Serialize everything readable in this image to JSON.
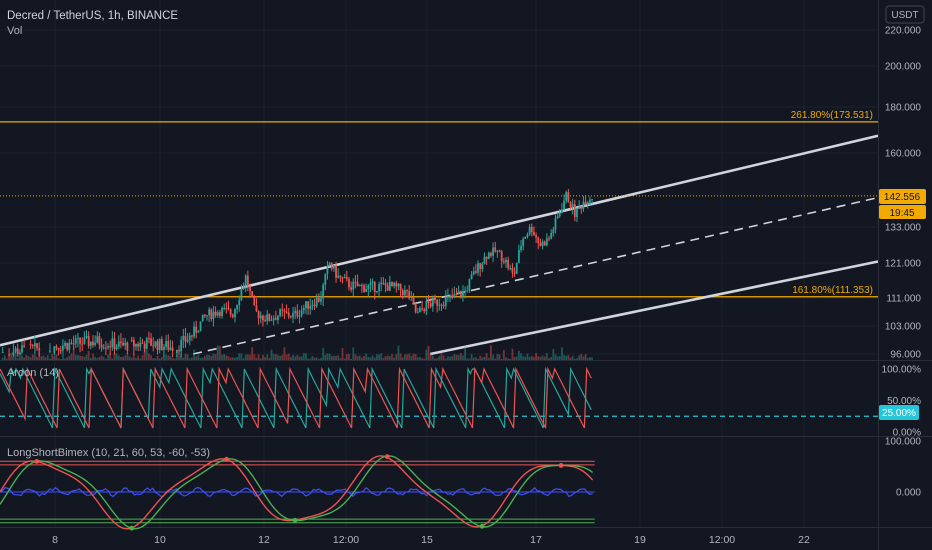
{
  "header": {
    "title": "Decred / TetherUS, 1h, BINANCE",
    "volume_label": "Vol"
  },
  "currency_label": "USDT",
  "price_tag": {
    "value": "142.556",
    "countdown": "19:45"
  },
  "colors": {
    "background": "#131722",
    "up": "#26a69a",
    "down": "#ef5350",
    "channel": "#d1d4dc",
    "fib": "#f2a900",
    "aroon_up": "#26a69a",
    "aroon_down": "#ef5350",
    "aroon_level": "#26c6da",
    "osc_red": "#ef5350",
    "osc_green": "#4caf50",
    "osc_blue": "#3f51f5",
    "text": "#b2b5be"
  },
  "chart_data": [
    {
      "type": "candlestick",
      "title": "Decred / TetherUS, 1h, BINANCE",
      "ylabel": "USDT",
      "y_ticks": [
        "220.000",
        "200.000",
        "180.000",
        "160.000",
        "133.000",
        "121.000",
        "111.000",
        "103.000",
        "96.000"
      ],
      "x_ticks": [
        "8",
        "10",
        "12",
        "12:00",
        "15",
        "17",
        "19",
        "12:00",
        "22"
      ],
      "fib_levels": [
        {
          "label": "261.80%(173.531)",
          "value": 173.531
        },
        {
          "label": "161.80%(111.353)",
          "value": 111.353
        }
      ],
      "last_price": 142.556,
      "channel": {
        "upper": [
          {
            "x": 0,
            "y": 98.2
          },
          {
            "x": 100,
            "y": 167.5
          }
        ],
        "middle": [
          {
            "x": 22,
            "y": 96.0
          },
          {
            "x": 100,
            "y": 142.0
          }
        ],
        "lower": [
          {
            "x": 49,
            "y": 96.0
          },
          {
            "x": 100,
            "y": 121.5
          }
        ]
      },
      "price_path": [
        [
          0,
          96.5
        ],
        [
          4,
          97.2
        ],
        [
          8,
          98.5
        ],
        [
          11,
          99.2
        ],
        [
          14,
          98.0
        ],
        [
          17,
          98.8
        ],
        [
          20,
          97.5
        ],
        [
          22,
          101.0
        ],
        [
          23.5,
          106.0
        ],
        [
          25,
          107.5
        ],
        [
          26.5,
          106.5
        ],
        [
          28,
          117.0
        ],
        [
          29,
          107.0
        ],
        [
          30.5,
          105.0
        ],
        [
          32,
          106.5
        ],
        [
          33.5,
          106.0
        ],
        [
          35,
          109.0
        ],
        [
          36.5,
          111.0
        ],
        [
          37.5,
          121.0
        ],
        [
          38.5,
          117.0
        ],
        [
          40,
          114.5
        ],
        [
          42,
          114.0
        ],
        [
          44,
          114.5
        ],
        [
          45.5,
          113.5
        ],
        [
          46.5,
          112.0
        ],
        [
          47.5,
          106.0
        ],
        [
          48.5,
          109.0
        ],
        [
          50,
          110.0
        ],
        [
          51.5,
          111.0
        ],
        [
          53,
          113.0
        ],
        [
          54,
          118.0
        ],
        [
          55.5,
          124.0
        ],
        [
          56.5,
          125.0
        ],
        [
          57.5,
          122.0
        ],
        [
          58.5,
          117.0
        ],
        [
          59.5,
          129.0
        ],
        [
          60.5,
          133.0
        ],
        [
          61.5,
          127.0
        ],
        [
          62.5,
          129.0
        ],
        [
          63.5,
          136.0
        ],
        [
          64.5,
          143.0
        ],
        [
          65.5,
          137.0
        ],
        [
          66.5,
          141.0
        ],
        [
          67.5,
          142.556
        ]
      ]
    },
    {
      "type": "line",
      "title": "Aroon (14)",
      "series": [],
      "y_ticks": [
        "100.00%",
        "50.00%",
        "0.00%"
      ],
      "level": {
        "label": "25.00%",
        "value": 25
      }
    },
    {
      "type": "line",
      "title": "LongShortBimex (10, 21, 60, 53, -60, -53)",
      "series": [],
      "y_ticks": [
        "100.000",
        "0.000"
      ],
      "levels": [
        60,
        53,
        0,
        -53,
        -60
      ]
    }
  ]
}
